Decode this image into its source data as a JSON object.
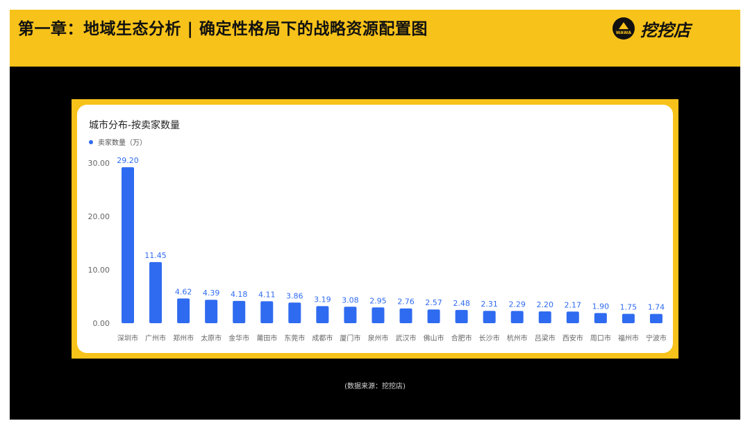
{
  "header": {
    "title": "第一章：地域生态分析 | 确定性格局下的战略资源配置图",
    "logo_mark_text": "WAWA",
    "logo_text": "挖挖店"
  },
  "footer": {
    "source": "(数据来源：挖挖店)"
  },
  "colors": {
    "accent_yellow": "#F7C21A",
    "bar_blue": "#2F6BF0",
    "background": "#000000"
  },
  "chart_data": {
    "type": "bar",
    "title": "城市分布-按卖家数量",
    "legend_position": "top-left",
    "grid": false,
    "ylim": [
      0,
      30
    ],
    "yticks": [
      "0.00",
      "10.00",
      "20.00",
      "30.00"
    ],
    "categories": [
      "深圳市",
      "广州市",
      "郑州市",
      "太原市",
      "金华市",
      "莆田市",
      "东莞市",
      "成都市",
      "厦门市",
      "泉州市",
      "武汉市",
      "佛山市",
      "合肥市",
      "长沙市",
      "杭州市",
      "吕梁市",
      "西安市",
      "周口市",
      "福州市",
      "宁波市"
    ],
    "series": [
      {
        "name": "卖家数量（万）",
        "values": [
          29.2,
          11.45,
          4.62,
          4.39,
          4.18,
          4.11,
          3.86,
          3.19,
          3.08,
          2.95,
          2.76,
          2.57,
          2.48,
          2.31,
          2.29,
          2.2,
          2.17,
          1.9,
          1.75,
          1.74
        ],
        "labels": [
          "29.20",
          "11.45",
          "4.62",
          "4.39",
          "4.18",
          "4.11",
          "3.86",
          "3.19",
          "3.08",
          "2.95",
          "2.76",
          "2.57",
          "2.48",
          "2.31",
          "2.29",
          "2.20",
          "2.17",
          "1.90",
          "1.75",
          "1.74"
        ]
      }
    ]
  }
}
